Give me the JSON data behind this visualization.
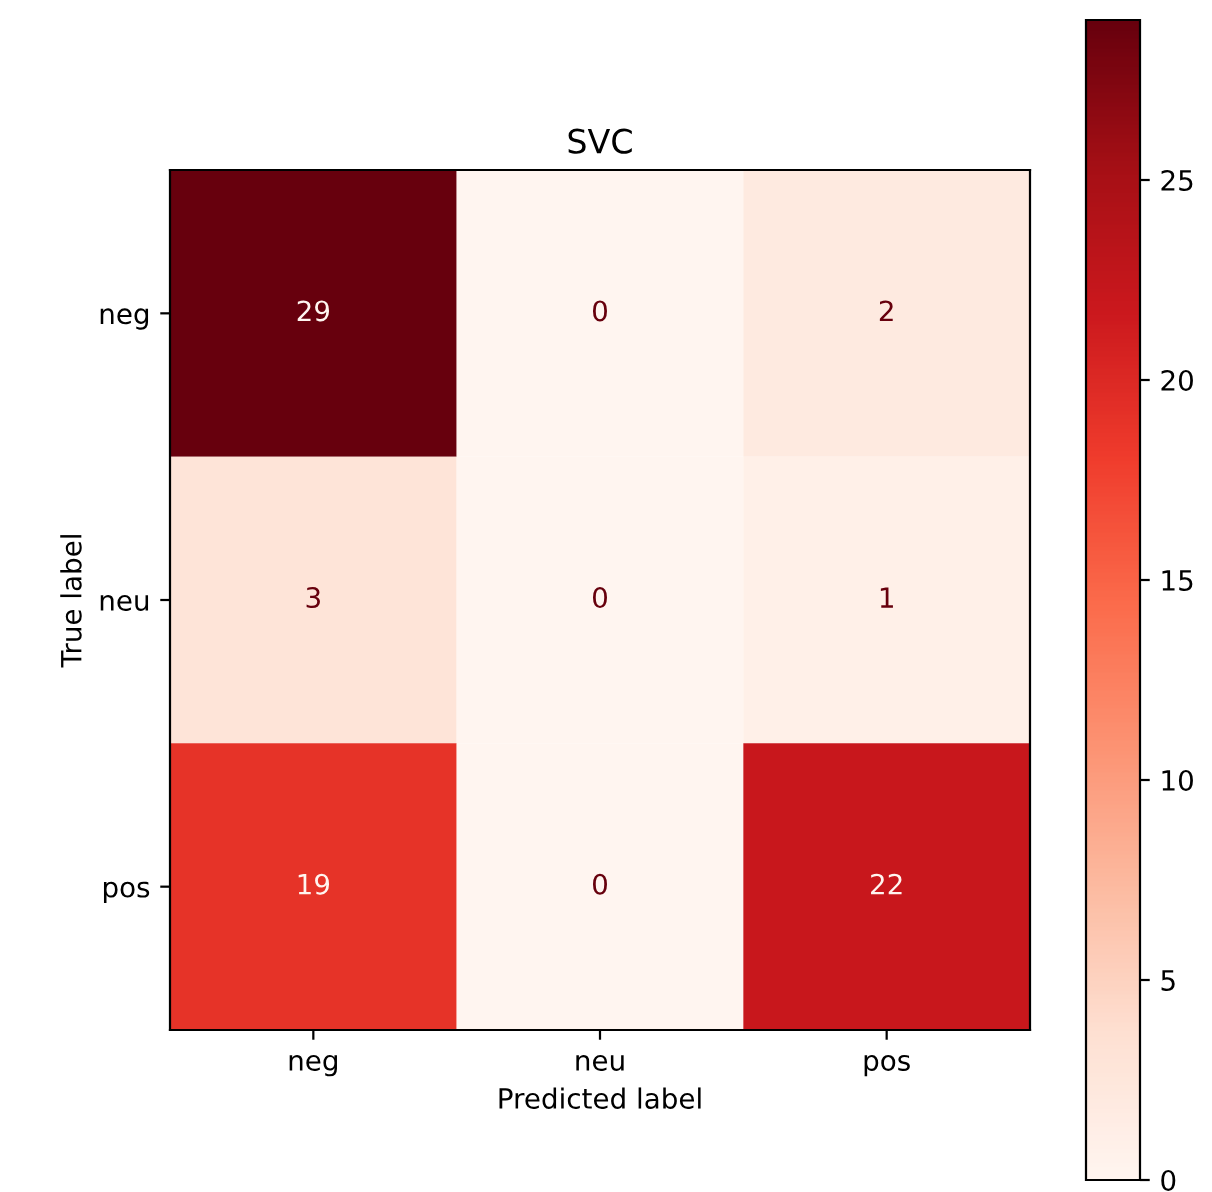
{
  "chart_data": {
    "type": "heatmap",
    "title": "SVC",
    "xlabel": "Predicted label",
    "ylabel": "True label",
    "categories": [
      "neg",
      "neu",
      "pos"
    ],
    "y_categories": [
      "neg",
      "neu",
      "pos"
    ],
    "cells": [
      [
        29,
        0,
        2
      ],
      [
        3,
        0,
        1
      ],
      [
        19,
        0,
        22
      ]
    ],
    "data_labels": true,
    "clim": [
      0,
      29
    ],
    "cticks": [
      0,
      5,
      10,
      15,
      20,
      25
    ]
  }
}
